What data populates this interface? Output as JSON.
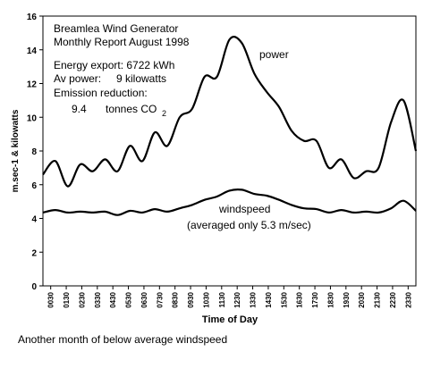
{
  "chart_data": {
    "type": "line",
    "xlabel": "Time of Day",
    "ylabel": "m.sec-1 & kilowatts",
    "ylim": [
      0,
      16
    ],
    "yticks": [
      0,
      2,
      4,
      6,
      8,
      10,
      12,
      14,
      16
    ],
    "xticks": [
      "0030",
      "0130",
      "0230",
      "0330",
      "0430",
      "0530",
      "0630",
      "0730",
      "0830",
      "0930",
      "1030",
      "1130",
      "1230",
      "1330",
      "1430",
      "1530",
      "1630",
      "1730",
      "1830",
      "1930",
      "2030",
      "2130",
      "2230",
      "2330"
    ],
    "legend": "inline labels",
    "grid": false,
    "series": [
      {
        "name": "power",
        "values": [
          6.6,
          7.4,
          5.9,
          7.2,
          6.8,
          7.5,
          6.8,
          8.3,
          7.4,
          9.1,
          8.3,
          10.0,
          10.5,
          12.4,
          12.4,
          14.6,
          14.4,
          12.6,
          11.5,
          10.6,
          9.2,
          8.6,
          8.6,
          7.0,
          7.5,
          6.4,
          6.8,
          7.0,
          9.7,
          11.0,
          8.0
        ]
      },
      {
        "name": "windspeed",
        "values": [
          4.35,
          4.5,
          4.35,
          4.4,
          4.35,
          4.4,
          4.2,
          4.45,
          4.35,
          4.55,
          4.4,
          4.6,
          4.8,
          5.1,
          5.3,
          5.65,
          5.7,
          5.45,
          5.35,
          5.1,
          4.8,
          4.6,
          4.55,
          4.35,
          4.5,
          4.35,
          4.4,
          4.35,
          4.6,
          5.05,
          4.45
        ]
      }
    ],
    "annotations": {
      "title_line1": "Breamlea Wind Generator",
      "title_line2": "Monthly Report August 1998",
      "energy_export": "Energy export: 6722 kWh",
      "av_power_label": "Av power:",
      "av_power_value": "9 kilowatts",
      "emission_label": "Emission reduction:",
      "emission_value": "9.4",
      "emission_unit": "tonnes CO",
      "emission_sub": "2",
      "power_label": "power",
      "windspeed_label": "windspeed",
      "windspeed_note": "(averaged only 5.3 m/sec)"
    }
  },
  "caption": "Another month of below average windspeed"
}
